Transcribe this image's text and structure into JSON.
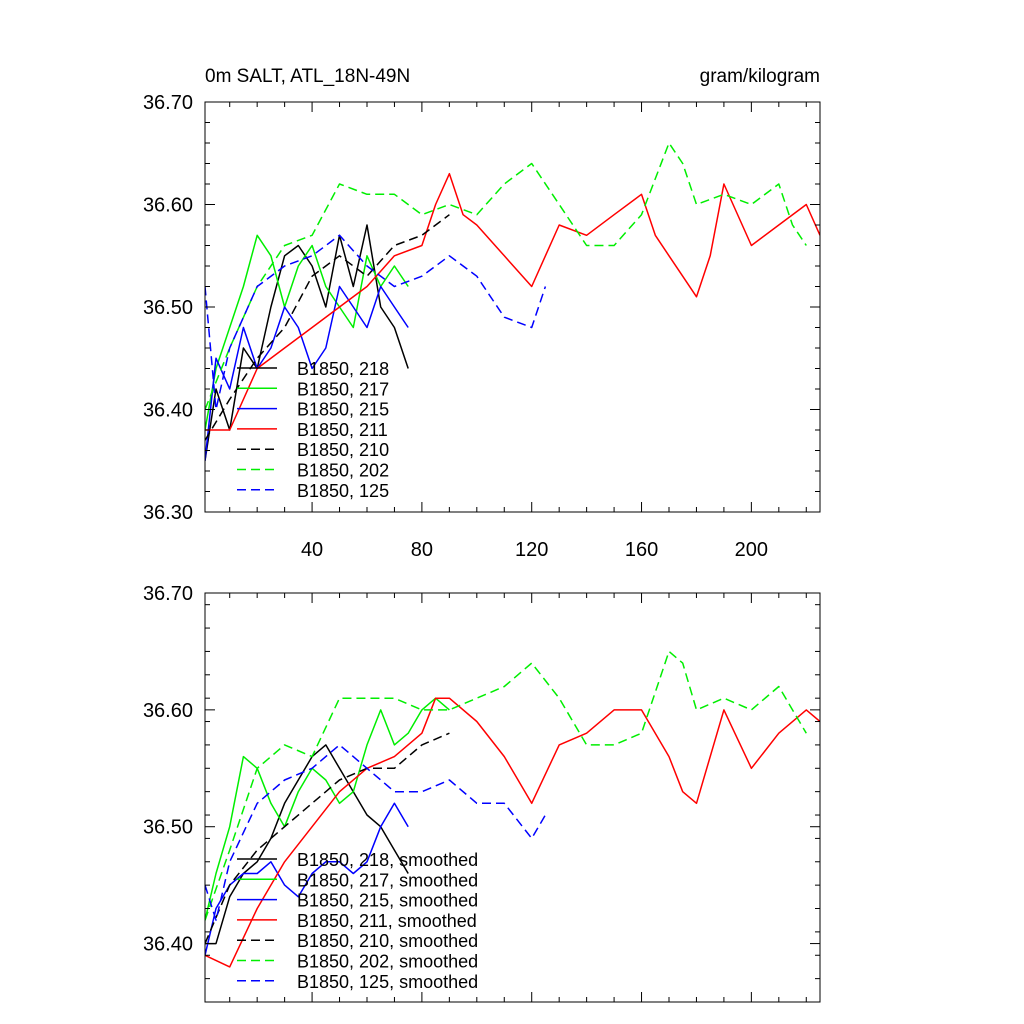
{
  "chart_data": [
    {
      "type": "line",
      "title_left": "0m SALT, ATL_18N-49N",
      "title_right": "gram/kilogram",
      "xlabel": "",
      "ylabel": "",
      "xlim": [
        1,
        225
      ],
      "ylim": [
        36.3,
        36.7
      ],
      "xticks": [
        40,
        80,
        120,
        160,
        200
      ],
      "xtick_labels": [
        "40",
        "80",
        "120",
        "160",
        "200"
      ],
      "yticks": [
        36.3,
        36.4,
        36.5,
        36.6,
        36.7
      ],
      "ytick_labels": [
        "36.30",
        "36.40",
        "36.50",
        "36.60",
        "36.70"
      ],
      "legend_position": "lower-left",
      "series": [
        {
          "name": "B1850, 218",
          "color": "#000000",
          "dash": "solid",
          "x": [
            1,
            5,
            10,
            15,
            20,
            25,
            30,
            35,
            40,
            45,
            50,
            55,
            60,
            65,
            70,
            75
          ],
          "y": [
            36.35,
            36.42,
            36.38,
            36.46,
            36.44,
            36.5,
            36.55,
            36.56,
            36.54,
            36.5,
            36.57,
            36.52,
            36.58,
            36.5,
            36.48,
            36.44
          ]
        },
        {
          "name": "B1850, 217",
          "color": "#00ee00",
          "dash": "solid",
          "x": [
            1,
            5,
            10,
            15,
            20,
            25,
            30,
            35,
            40,
            45,
            50,
            55,
            60,
            65,
            70,
            75
          ],
          "y": [
            36.38,
            36.44,
            36.48,
            36.52,
            36.57,
            36.55,
            36.5,
            36.54,
            36.56,
            36.52,
            36.5,
            36.48,
            36.55,
            36.52,
            36.54,
            36.52
          ]
        },
        {
          "name": "B1850, 215",
          "color": "#0000ff",
          "dash": "solid",
          "x": [
            1,
            5,
            10,
            15,
            20,
            25,
            30,
            35,
            40,
            45,
            50,
            55,
            60,
            65,
            70,
            75
          ],
          "y": [
            36.35,
            36.45,
            36.42,
            36.48,
            36.44,
            36.46,
            36.5,
            36.48,
            36.44,
            36.46,
            36.52,
            36.5,
            36.48,
            36.52,
            36.5,
            36.48
          ]
        },
        {
          "name": "B1850, 211",
          "color": "#ff0000",
          "dash": "solid",
          "x": [
            1,
            10,
            20,
            30,
            40,
            50,
            60,
            70,
            80,
            85,
            90,
            95,
            100,
            110,
            120,
            130,
            140,
            150,
            160,
            165,
            170,
            175,
            180,
            185,
            190,
            200,
            210,
            220,
            225
          ],
          "y": [
            36.38,
            36.38,
            36.44,
            36.46,
            36.48,
            36.5,
            36.52,
            36.55,
            36.56,
            36.6,
            36.63,
            36.59,
            36.58,
            36.55,
            36.52,
            36.58,
            36.57,
            36.59,
            36.61,
            36.57,
            36.55,
            36.53,
            36.51,
            36.55,
            36.62,
            36.56,
            36.58,
            36.6,
            36.57
          ]
        },
        {
          "name": "B1850, 210",
          "color": "#000000",
          "dash": "dashed",
          "x": [
            1,
            10,
            20,
            30,
            40,
            50,
            60,
            70,
            80,
            90
          ],
          "y": [
            36.37,
            36.41,
            36.45,
            36.48,
            36.53,
            36.55,
            36.53,
            36.56,
            36.57,
            36.59
          ]
        },
        {
          "name": "B1850, 202",
          "color": "#00ee00",
          "dash": "dashed",
          "x": [
            1,
            10,
            20,
            30,
            40,
            50,
            60,
            70,
            80,
            90,
            100,
            110,
            120,
            130,
            140,
            150,
            160,
            170,
            175,
            180,
            190,
            200,
            210,
            215,
            220
          ],
          "y": [
            36.4,
            36.46,
            36.52,
            36.56,
            36.57,
            36.62,
            36.61,
            36.61,
            36.59,
            36.6,
            36.59,
            36.62,
            36.64,
            36.6,
            36.56,
            36.56,
            36.59,
            36.66,
            36.64,
            36.6,
            36.61,
            36.6,
            36.62,
            36.58,
            36.56
          ]
        },
        {
          "name": "B1850, 125",
          "color": "#0000ff",
          "dash": "dashed",
          "x": [
            1,
            5,
            10,
            20,
            30,
            40,
            50,
            60,
            70,
            80,
            90,
            100,
            110,
            120,
            125
          ],
          "y": [
            36.52,
            36.4,
            36.46,
            36.52,
            36.54,
            36.55,
            36.57,
            36.54,
            36.52,
            36.53,
            36.55,
            36.53,
            36.49,
            36.48,
            36.52
          ]
        }
      ]
    },
    {
      "type": "line",
      "title_left": "",
      "title_right": "",
      "xlabel": "",
      "ylabel": "",
      "xlim": [
        1,
        225
      ],
      "ylim": [
        36.35,
        36.7
      ],
      "xticks": [
        40,
        80,
        120,
        160,
        200
      ],
      "xtick_labels": [],
      "yticks": [
        36.4,
        36.5,
        36.6,
        36.7
      ],
      "ytick_labels": [
        "36.40",
        "36.50",
        "36.60",
        "36.70"
      ],
      "legend_position": "lower-left",
      "series": [
        {
          "name": "B1850, 218, smoothed",
          "color": "#000000",
          "dash": "solid",
          "x": [
            1,
            5,
            10,
            15,
            20,
            25,
            30,
            35,
            40,
            45,
            50,
            55,
            60,
            65,
            70,
            75
          ],
          "y": [
            36.4,
            36.4,
            36.44,
            36.46,
            36.47,
            36.49,
            36.52,
            36.54,
            36.56,
            36.57,
            36.55,
            36.53,
            36.51,
            36.5,
            36.48,
            36.46
          ]
        },
        {
          "name": "B1850, 217, smoothed",
          "color": "#00ee00",
          "dash": "solid",
          "x": [
            1,
            5,
            10,
            15,
            20,
            25,
            30,
            35,
            40,
            45,
            50,
            55,
            60,
            65,
            70,
            75,
            80,
            85,
            90
          ],
          "y": [
            36.42,
            36.46,
            36.5,
            36.56,
            36.55,
            36.52,
            36.5,
            36.53,
            36.55,
            36.54,
            36.52,
            36.53,
            36.57,
            36.6,
            36.57,
            36.58,
            36.6,
            36.61,
            36.6
          ]
        },
        {
          "name": "B1850, 215, smoothed",
          "color": "#0000ff",
          "dash": "solid",
          "x": [
            1,
            5,
            10,
            15,
            20,
            25,
            30,
            35,
            40,
            45,
            50,
            55,
            60,
            65,
            70,
            75
          ],
          "y": [
            36.39,
            36.43,
            36.45,
            36.46,
            36.46,
            36.47,
            36.45,
            36.44,
            36.46,
            36.47,
            36.47,
            36.46,
            36.47,
            36.5,
            36.52,
            36.5
          ]
        },
        {
          "name": "B1850, 211, smoothed",
          "color": "#ff0000",
          "dash": "solid",
          "x": [
            1,
            10,
            20,
            30,
            40,
            50,
            60,
            70,
            80,
            85,
            90,
            100,
            110,
            120,
            130,
            140,
            150,
            160,
            170,
            175,
            180,
            190,
            200,
            210,
            220,
            225
          ],
          "y": [
            36.39,
            36.38,
            36.43,
            36.47,
            36.5,
            36.53,
            36.55,
            36.56,
            36.58,
            36.61,
            36.61,
            36.59,
            36.56,
            36.52,
            36.57,
            36.58,
            36.6,
            36.6,
            36.56,
            36.53,
            36.52,
            36.6,
            36.55,
            36.58,
            36.6,
            36.59
          ]
        },
        {
          "name": "B1850, 210, smoothed",
          "color": "#000000",
          "dash": "dashed",
          "x": [
            1,
            10,
            20,
            30,
            40,
            50,
            60,
            70,
            80,
            90
          ],
          "y": [
            36.4,
            36.45,
            36.48,
            36.5,
            36.52,
            36.54,
            36.55,
            36.55,
            36.57,
            36.58
          ]
        },
        {
          "name": "B1850, 202, smoothed",
          "color": "#00ee00",
          "dash": "dashed",
          "x": [
            1,
            10,
            20,
            30,
            40,
            50,
            60,
            70,
            80,
            90,
            100,
            110,
            120,
            130,
            140,
            150,
            160,
            170,
            175,
            180,
            190,
            200,
            210,
            215,
            220
          ],
          "y": [
            36.42,
            36.48,
            36.55,
            36.57,
            36.56,
            36.61,
            36.61,
            36.61,
            36.6,
            36.6,
            36.61,
            36.62,
            36.64,
            36.61,
            36.57,
            36.57,
            36.58,
            36.65,
            36.64,
            36.6,
            36.61,
            36.6,
            36.62,
            36.6,
            36.58
          ]
        },
        {
          "name": "B1850, 125, smoothed",
          "color": "#0000ff",
          "dash": "dashed",
          "x": [
            1,
            5,
            10,
            20,
            30,
            40,
            50,
            60,
            70,
            80,
            90,
            100,
            110,
            120,
            125
          ],
          "y": [
            36.45,
            36.42,
            36.47,
            36.52,
            36.54,
            36.55,
            36.57,
            36.55,
            36.53,
            36.53,
            36.54,
            36.52,
            36.52,
            36.49,
            36.51
          ]
        }
      ]
    }
  ]
}
